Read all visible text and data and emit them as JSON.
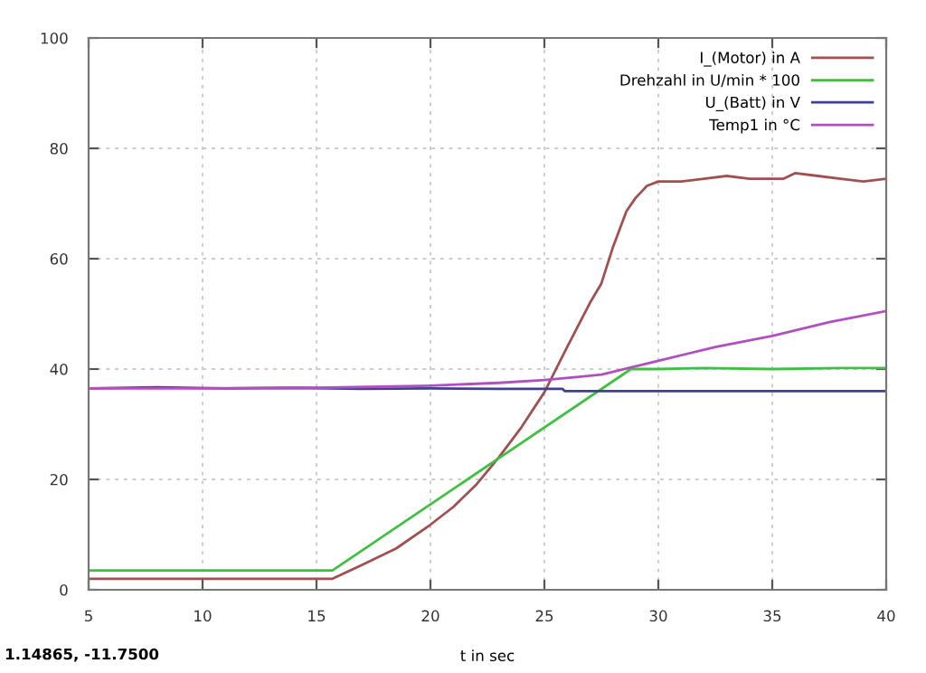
{
  "chart_data": {
    "type": "line",
    "xlabel": "t in sec",
    "xlim": [
      5,
      40
    ],
    "xticks": [
      5,
      10,
      15,
      20,
      25,
      30,
      35,
      40
    ],
    "ylim": [
      0,
      100
    ],
    "yticks": [
      0,
      20,
      40,
      60,
      80,
      100
    ],
    "grid": true,
    "legend": "top right",
    "line_style": "solid",
    "annotations": [
      "1.14865, -11.7500"
    ],
    "series": [
      {
        "name": "I_(Motor) in A",
        "color": "#a05050",
        "x": [
          5,
          10,
          15,
          15.7,
          17,
          18.5,
          20,
          21,
          22,
          23,
          24,
          25,
          26,
          27,
          27.5,
          28,
          28.6,
          29,
          29.5,
          30,
          31,
          32,
          33,
          34,
          35,
          35.5,
          36,
          37,
          38,
          39,
          40
        ],
        "values": [
          2,
          2,
          2,
          2,
          4.5,
          7.5,
          11.8,
          15,
          19,
          24,
          29.5,
          35.8,
          44,
          52,
          55.5,
          62,
          68.6,
          71,
          73.2,
          74,
          74,
          74.5,
          75,
          74.5,
          74.5,
          74.5,
          75.5,
          75,
          74.5,
          74,
          74.5
        ]
      },
      {
        "name": "Drehzahl in U/min * 100",
        "color": "#40c040",
        "x": [
          5,
          15.7,
          28.8,
          30,
          32,
          35,
          38,
          40
        ],
        "values": [
          3.5,
          3.5,
          40,
          40,
          40.2,
          40,
          40.2,
          40.2
        ]
      },
      {
        "name": "U_(Batt) in V",
        "color": "#404090",
        "x": [
          5,
          8,
          11,
          14,
          17,
          20,
          23,
          25.8,
          25.9,
          30,
          35,
          40
        ],
        "values": [
          36.5,
          36.7,
          36.5,
          36.6,
          36.4,
          36.5,
          36.4,
          36.4,
          36,
          36,
          36,
          36
        ]
      },
      {
        "name": "Temp1 in °C",
        "color": "#b050c0",
        "x": [
          5,
          10,
          15,
          20,
          23,
          25,
          26.5,
          27.5,
          30,
          32.5,
          35,
          37.5,
          40
        ],
        "values": [
          36.5,
          36.5,
          36.6,
          37,
          37.5,
          38,
          38.6,
          39,
          41.5,
          44,
          46,
          48.5,
          50.5
        ]
      }
    ]
  }
}
